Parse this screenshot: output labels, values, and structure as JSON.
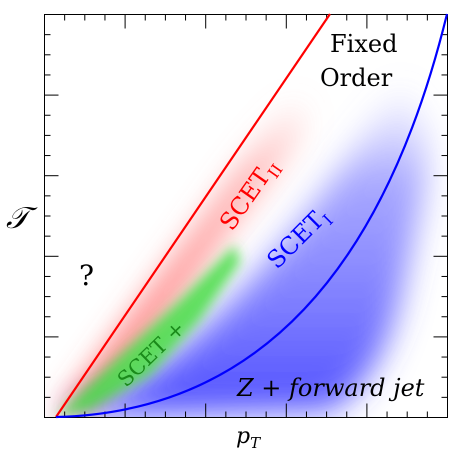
{
  "axes": {
    "x_label_main": "p",
    "x_label_sub": "T",
    "y_label": "𝒯"
  },
  "regions": {
    "fixed_order_line1": "Fixed",
    "fixed_order_line2": "Order",
    "scet2_main": "SCET",
    "scet2_sub": "II",
    "scet1_main": "SCET",
    "scet1_sub": "I",
    "scet_plus": "SCET +",
    "unknown": "?",
    "process": "Z + forward jet"
  },
  "colors": {
    "scet2": "#ff0000",
    "scet1": "#0000ff",
    "scet_plus": "#1a8a1a",
    "green_fill": "#44dd44",
    "axes": "#000000"
  }
}
